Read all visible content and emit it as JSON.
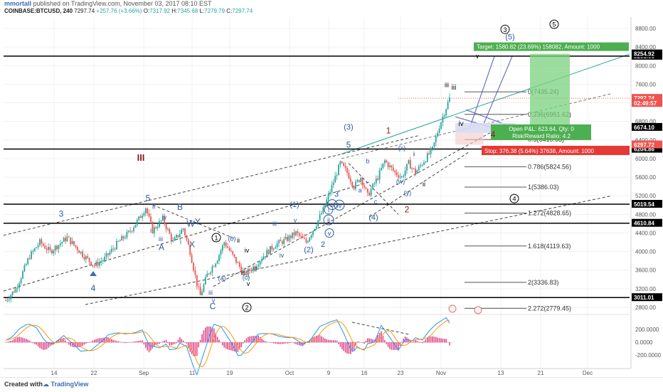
{
  "header": {
    "author": "mmortall",
    "published_text": "published on TradingView.com, November 03, 2017 08:10 EST",
    "symbol_line": "COINBASE:BTCUSD, 240",
    "last": "7297.74",
    "change": "+257.76 (+3.66%)",
    "open_label": "O:",
    "open": "7317.92",
    "high_label": "H:",
    "high": "7345.68",
    "low_label": "L:",
    "low": "7279.79",
    "close_label": "C:",
    "close": "7297.74"
  },
  "footer": {
    "created_with": "Created with",
    "brand": "TradingView"
  },
  "chart_data": {
    "type": "candlestick",
    "x_ticks": [
      "14",
      "22",
      "Sep",
      "11",
      "19",
      "Oct",
      "9",
      "16",
      "23",
      "Nov",
      "13",
      "21",
      "Dec"
    ],
    "y_ticks": [
      2800,
      3200,
      3600,
      4000,
      4400,
      4800,
      5200,
      5600,
      6000,
      6400,
      6800,
      7200,
      7600,
      8000,
      8400,
      8800
    ],
    "price_path": [
      [
        0,
        2950
      ],
      [
        6,
        3200
      ],
      [
        14,
        3900
      ],
      [
        20,
        4200
      ],
      [
        26,
        4000
      ],
      [
        36,
        4300
      ],
      [
        46,
        3900
      ],
      [
        52,
        3700
      ],
      [
        58,
        3850
      ],
      [
        66,
        4200
      ],
      [
        72,
        4400
      ],
      [
        78,
        4700
      ],
      [
        82,
        4950
      ],
      [
        86,
        4450
      ],
      [
        92,
        4700
      ],
      [
        98,
        4200
      ],
      [
        104,
        4500
      ],
      [
        108,
        4000
      ],
      [
        112,
        3300
      ],
      [
        114,
        3050
      ],
      [
        118,
        3500
      ],
      [
        124,
        3850
      ],
      [
        128,
        4200
      ],
      [
        134,
        3850
      ],
      [
        140,
        3500
      ],
      [
        146,
        3700
      ],
      [
        152,
        3950
      ],
      [
        158,
        4150
      ],
      [
        164,
        4250
      ],
      [
        170,
        4400
      ],
      [
        176,
        4200
      ],
      [
        182,
        4600
      ],
      [
        186,
        4900
      ],
      [
        188,
        5100
      ],
      [
        192,
        5500
      ],
      [
        196,
        5900
      ],
      [
        200,
        5700
      ],
      [
        204,
        5400
      ],
      [
        208,
        5600
      ],
      [
        212,
        5200
      ],
      [
        218,
        5600
      ],
      [
        222,
        5950
      ],
      [
        228,
        5700
      ],
      [
        232,
        5600
      ],
      [
        236,
        5900
      ],
      [
        240,
        5700
      ],
      [
        246,
        6000
      ],
      [
        250,
        6200
      ],
      [
        254,
        6700
      ],
      [
        258,
        7100
      ],
      [
        260,
        7297
      ]
    ],
    "indicator_ticks": [
      "200.0000",
      "0.0000",
      "-200.0000"
    ],
    "horizontal_levels": [
      {
        "price": 8205.06,
        "label": "8205.06",
        "color": "#000000"
      },
      {
        "price": 6204.86,
        "label": "6204.86",
        "color": "#000000"
      },
      {
        "price": 5019.54,
        "label": "5019.54",
        "color": "#000000"
      },
      {
        "price": 4610.84,
        "label": "4610.84",
        "color": "#000000"
      },
      {
        "price": 3011.01,
        "label": "3011.01",
        "color": "#000000"
      }
    ],
    "price_badges": [
      {
        "price": 8254.92,
        "label": "8254.92",
        "color": "#000000"
      },
      {
        "price": 7297.74,
        "label": "7297.74",
        "color": "#ef5350"
      },
      {
        "price": 7190,
        "label": "02:49:57",
        "color": "#ef5350"
      },
      {
        "price": 6674.1,
        "label": "6674.10",
        "color": "#000000"
      },
      {
        "price": 6297.72,
        "label": "6297.72",
        "color": "#ef5350"
      }
    ],
    "fib_levels": [
      {
        "ratio": "0",
        "price": 7435.24,
        "label": "0(7435.24)"
      },
      {
        "ratio": "0.236",
        "price": 6951.62,
        "label": "0.236(6951.62)"
      },
      {
        "ratio": "0.5",
        "price": 6410.63,
        "label": "0.5(6410.63)"
      },
      {
        "ratio": "0.786",
        "price": 5824.56,
        "label": "0.786(5824.56)"
      },
      {
        "ratio": "1",
        "price": 5386.03,
        "label": "1(5386.03)"
      },
      {
        "ratio": "1.272",
        "price": 4828.65,
        "label": "1.272(4828.65)"
      },
      {
        "ratio": "1.618",
        "price": 4119.63,
        "label": "1.618(4119.63)"
      },
      {
        "ratio": "2",
        "price": 3336.83,
        "label": "2(3336.83)"
      },
      {
        "ratio": "2.272",
        "price": 2779.45,
        "label": "2.272(2779.45)"
      }
    ],
    "position": {
      "target_label": "Target: 1580.82 (23.69%) 158082, Amount: 1000",
      "pnl_label": "Open P&L: 623.64, Qty: 0",
      "rr_label": "Risk/Reward Ratio: 4.2",
      "stop_label": "Stop: 376.38 (5.64%) 37638, Amount: 1000",
      "entry_price": 6674.1,
      "target_price": 8254.92,
      "stop_price": 6297.72
    },
    "wave_labels": [
      {
        "text": "III",
        "x": 198,
        "price": 5950,
        "color": "#8b1a1a",
        "size": 13,
        "bold": true
      },
      {
        "text": "3",
        "x": 86,
        "price": 4750,
        "color": "#2b5aa0",
        "size": 12
      },
      {
        "text": "4",
        "x": 131,
        "price": 3150,
        "color": "#2b5aa0",
        "size": 12
      },
      {
        "text": "5",
        "x": 208,
        "price": 5090,
        "color": "#2b5aa0",
        "size": 12
      },
      {
        "text": "A",
        "x": 227,
        "price": 4030,
        "color": "#2b5aa0",
        "size": 12
      },
      {
        "text": "B",
        "x": 253,
        "price": 4900,
        "color": "#2b5aa0",
        "size": 12
      },
      {
        "text": "X",
        "x": 270,
        "price": 4090,
        "color": "#2b5aa0",
        "size": 12
      },
      {
        "text": "W",
        "x": 268,
        "price": 4540,
        "color": "#2b5aa0",
        "size": 12
      },
      {
        "text": "Y",
        "x": 278,
        "price": 4580,
        "color": "#2b5aa0",
        "size": 12
      },
      {
        "text": "C",
        "x": 299,
        "price": 2760,
        "color": "#2b5aa0",
        "size": 12
      },
      {
        "text": "(1)",
        "x": 414,
        "price": 4960,
        "color": "#2b5aa0",
        "size": 11
      },
      {
        "text": "(2)",
        "x": 434,
        "price": 3990,
        "color": "#2b5aa0",
        "size": 11
      },
      {
        "text": "(3)",
        "x": 490,
        "price": 6630,
        "color": "#2b5aa0",
        "size": 11
      },
      {
        "text": "(4)",
        "x": 525,
        "price": 4680,
        "color": "#2b5aa0",
        "size": 11
      },
      {
        "text": "(5)",
        "x": 717,
        "price": 8560,
        "color": "#2b5aa0",
        "size": 11
      },
      {
        "text": "5",
        "x": 490,
        "price": 6240,
        "color": "#2b5aa0",
        "size": 12
      },
      {
        "text": "3",
        "x": 473,
        "price": 5180,
        "color": "#2b5aa0",
        "size": 11
      },
      {
        "text": "2",
        "x": 454,
        "price": 4100,
        "color": "#2b5aa0",
        "size": 11
      },
      {
        "text": "1",
        "x": 546,
        "price": 6540,
        "color": "#8b1a1a",
        "size": 12
      },
      {
        "text": "2",
        "x": 572,
        "price": 4840,
        "color": "#8b1a1a",
        "size": 12
      },
      {
        "text": "4",
        "x": 693,
        "price": 6460,
        "color": "#8b1a1a",
        "size": 12
      },
      {
        "text": "iii",
        "x": 638,
        "price": 7480,
        "color": "#000000",
        "size": 10
      },
      {
        "text": "iv",
        "x": 648,
        "price": 6700,
        "color": "#000000",
        "size": 10
      },
      {
        "text": "ii",
        "x": 596,
        "price": 5400,
        "color": "#000000",
        "size": 9
      },
      {
        "text": "i",
        "x": 582,
        "price": 6050,
        "color": "#000000",
        "size": 9
      },
      {
        "text": "(x)",
        "x": 565,
        "price": 6180,
        "color": "#2b5aa0",
        "size": 9
      },
      {
        "text": "(w)",
        "x": 563,
        "price": 5460,
        "color": "#2b5aa0",
        "size": 9
      },
      {
        "text": "(y)",
        "x": 573,
        "price": 5220,
        "color": "#2b5aa0",
        "size": 9
      },
      {
        "text": "a",
        "x": 506,
        "price": 5270,
        "color": "#2b5aa0",
        "size": 9
      },
      {
        "text": "b",
        "x": 517,
        "price": 5900,
        "color": "#2b5aa0",
        "size": 9
      },
      {
        "text": "c",
        "x": 528,
        "price": 5030,
        "color": "#2b5aa0",
        "size": 9
      },
      {
        "text": "iii",
        "x": 386,
        "price": 4550,
        "color": "#2b5aa0",
        "size": 9
      },
      {
        "text": "iv",
        "x": 396,
        "price": 3870,
        "color": "#2b5aa0",
        "size": 9
      },
      {
        "text": "v",
        "x": 415,
        "price": 4630,
        "color": "#2b5aa0",
        "size": 9
      },
      {
        "text": "(a)",
        "x": 312,
        "price": 3380,
        "color": "#2b5aa0",
        "size": 9
      },
      {
        "text": "(b)",
        "x": 326,
        "price": 4230,
        "color": "#2b5aa0",
        "size": 9
      },
      {
        "text": "(c)",
        "x": 346,
        "price": 3400,
        "color": "#2b5aa0",
        "size": 9
      },
      {
        "text": "iii",
        "x": 296,
        "price": 3070,
        "color": "#2b5aa0",
        "size": 9
      },
      {
        "text": "v",
        "x": 300,
        "price": 2900,
        "color": "#2b5aa0",
        "size": 9
      },
      {
        "text": "ii",
        "x": 216,
        "price": 4920,
        "color": "#2b5aa0",
        "size": 9
      },
      {
        "text": "iv",
        "x": 231,
        "price": 4690,
        "color": "#2b5aa0",
        "size": 9
      },
      {
        "text": "i",
        "x": 212,
        "price": 4410,
        "color": "#2b5aa0",
        "size": 9
      },
      {
        "text": "iii",
        "x": 226,
        "price": 4220,
        "color": "#2b5aa0",
        "size": 9
      },
      {
        "text": "i",
        "x": 254,
        "price": 4160,
        "color": "#2b5aa0",
        "size": 9
      },
      {
        "text": "ii",
        "x": 335,
        "price": 4190,
        "color": "#000000",
        "size": 9
      },
      {
        "text": "iv",
        "x": 347,
        "price": 3980,
        "color": "#000000",
        "size": 9
      },
      {
        "text": "iii",
        "x": 342,
        "price": 3490,
        "color": "#000000",
        "size": 9
      },
      {
        "text": "ii",
        "x": 359,
        "price": 3570,
        "color": "#000000",
        "size": 9
      },
      {
        "text": "v",
        "x": 349,
        "price": 3260,
        "color": "#000000",
        "size": 9
      },
      {
        "text": "iii",
        "x": 628,
        "price": 7540,
        "color": "#000000",
        "size": 9
      },
      {
        "text": "v",
        "x": 671,
        "price": 8160,
        "color": "#000000",
        "size": 9
      }
    ],
    "circled_labels": [
      {
        "text": "1",
        "x": 304,
        "price": 4300,
        "color": "#000000"
      },
      {
        "text": "2",
        "x": 347,
        "price": 2800,
        "color": "#000000"
      },
      {
        "text": "3",
        "x": 710,
        "price": 8780,
        "color": "#000000"
      },
      {
        "text": "4",
        "x": 723,
        "price": 5140,
        "color": "#000000"
      },
      {
        "text": "5",
        "x": 779,
        "price": 8890,
        "color": "#000000"
      },
      {
        "text": "i",
        "x": 462,
        "price": 4900,
        "color": "#2b5aa0"
      },
      {
        "text": "ii",
        "x": 462,
        "price": 4680,
        "color": "#2b5aa0"
      },
      {
        "text": "iii",
        "x": 467,
        "price": 5010,
        "color": "#2b5aa0"
      },
      {
        "text": "iv",
        "x": 477,
        "price": 5000,
        "color": "#2b5aa0"
      },
      {
        "text": "v",
        "x": 463,
        "price": 4400,
        "color": "#2b5aa0"
      }
    ],
    "arrows": [
      {
        "x": 131,
        "price": 3550,
        "direction": "up",
        "color": "#3a6fb0"
      }
    ]
  }
}
